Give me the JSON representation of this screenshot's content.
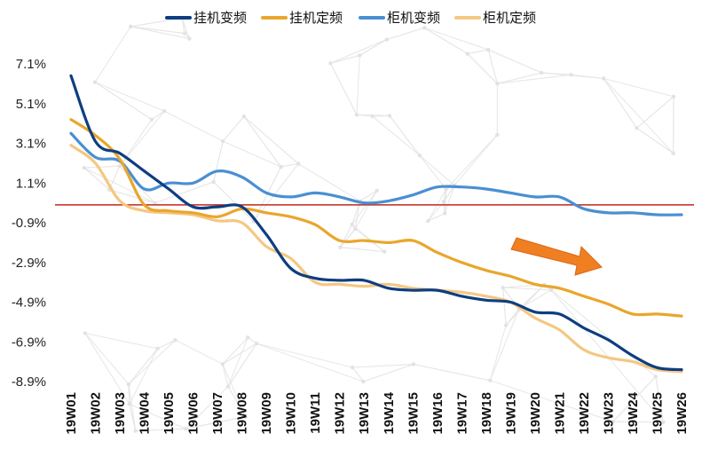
{
  "chart_data": {
    "type": "line",
    "title": "",
    "xlabel": "",
    "ylabel": "",
    "ylim": [
      -8.9,
      7.1
    ],
    "y_ticks": [
      "7.1%",
      "5.1%",
      "3.1%",
      "1.1%",
      "-0.9%",
      "-2.9%",
      "-4.9%",
      "-6.9%",
      "-8.9%"
    ],
    "y_tick_values": [
      7.1,
      5.1,
      3.1,
      1.1,
      -0.9,
      -2.9,
      -4.9,
      -6.9,
      -8.9
    ],
    "categories": [
      "19W01",
      "19W02",
      "19W03",
      "19W04",
      "19W05",
      "19W06",
      "19W07",
      "19W08",
      "19W09",
      "19W10",
      "19W11",
      "19W12",
      "19W13",
      "19W14",
      "19W15",
      "19W16",
      "19W17",
      "19W18",
      "19W19",
      "19W20",
      "19W21",
      "19W22",
      "19W23",
      "19W24",
      "19W25",
      "19W26"
    ],
    "reference_line": {
      "value": 0,
      "color": "#c0281c"
    },
    "legend_position": "top",
    "annotations": [
      {
        "type": "arrow",
        "color": "#f07f22",
        "meaning": "downward trend"
      }
    ],
    "series": [
      {
        "name": "挂机变频",
        "color": "#0e3e80",
        "values": [
          6.5,
          3.2,
          2.6,
          1.7,
          0.8,
          -0.1,
          -0.1,
          -0.1,
          -1.5,
          -3.2,
          -3.7,
          -3.8,
          -3.8,
          -4.2,
          -4.3,
          -4.3,
          -4.6,
          -4.8,
          -4.9,
          -5.4,
          -5.5,
          -6.2,
          -6.8,
          -7.6,
          -8.2,
          -8.3
        ]
      },
      {
        "name": "挂机定频",
        "color": "#e9a62c",
        "values": [
          4.3,
          3.5,
          2.3,
          0.0,
          -0.3,
          -0.4,
          -0.6,
          -0.2,
          -0.4,
          -0.6,
          -1.0,
          -1.8,
          -1.8,
          -1.9,
          -1.8,
          -2.4,
          -2.9,
          -3.3,
          -3.6,
          -4.0,
          -4.2,
          -4.6,
          -5.0,
          -5.5,
          -5.5,
          -5.6
        ]
      },
      {
        "name": "柜机变频",
        "color": "#4a8fd2",
        "values": [
          3.6,
          2.4,
          2.2,
          0.8,
          1.1,
          1.1,
          1.7,
          1.4,
          0.6,
          0.4,
          0.6,
          0.4,
          0.1,
          0.2,
          0.5,
          0.9,
          0.9,
          0.8,
          0.6,
          0.4,
          0.4,
          -0.2,
          -0.4,
          -0.4,
          -0.5,
          -0.5
        ]
      },
      {
        "name": "柜机定频",
        "color": "#f4c782",
        "values": [
          3.0,
          2.1,
          0.2,
          -0.3,
          -0.4,
          -0.5,
          -0.8,
          -0.9,
          -2.1,
          -2.7,
          -3.9,
          -4.0,
          -4.1,
          -4.0,
          -4.2,
          -4.3,
          -4.4,
          -4.6,
          -4.9,
          -5.7,
          -6.3,
          -7.3,
          -7.7,
          -7.9,
          -8.3,
          -8.4
        ]
      }
    ]
  }
}
